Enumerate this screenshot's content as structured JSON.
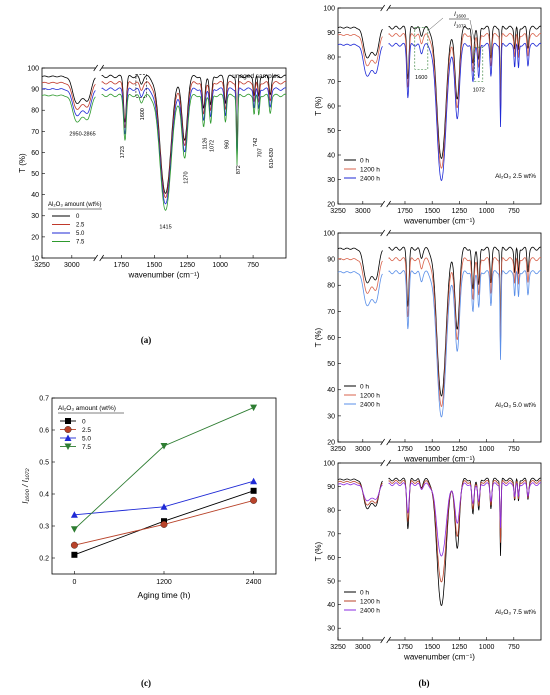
{
  "colors": {
    "black": "#000000",
    "red": "#c0392b",
    "blue": "#1f2ad6",
    "green": "#2e9a2e",
    "orange_red": "#d9634c",
    "light_blue": "#5a8fe8",
    "violet": "#8a2be2",
    "brown_red": "#b8432a",
    "dashed_box": "#2e7d32"
  },
  "panel_labels": {
    "a": "(a)",
    "b": "(b)",
    "c": "(c)"
  },
  "chart_data": [
    {
      "id": "a",
      "type": "line",
      "title": "",
      "xlabel": "wavenumber (cm⁻¹)",
      "ylabel": "T (%)",
      "xlim": [
        3250,
        500
      ],
      "ylim": [
        10,
        100
      ],
      "x_ticks": [
        "3250",
        "3000",
        "1750",
        "1500",
        "1250",
        "1000",
        "750"
      ],
      "y_ticks": [
        "10",
        "20",
        "30",
        "40",
        "50",
        "60",
        "70",
        "80",
        "90",
        "100"
      ],
      "axis_break": true,
      "corner_text": "unaged samples",
      "legend_title": "Al₂O₃ amount (wt%)",
      "legend_position": "bottom-left",
      "series": [
        {
          "name": "0",
          "color": "#000000",
          "offset": 96,
          "min": 40
        },
        {
          "name": "2.5",
          "color": "#c0392b",
          "offset": 93,
          "min": 38
        },
        {
          "name": "5.0",
          "color": "#1f2ad6",
          "offset": 90,
          "min": 35
        },
        {
          "name": "7.5",
          "color": "#2e9a2e",
          "offset": 87,
          "min": 32
        }
      ],
      "annotations": [
        {
          "text": "2950-2865",
          "x": 2910
        },
        {
          "text": "1723",
          "x": 1723
        },
        {
          "text": "1600",
          "x": 1600
        },
        {
          "text": "1415",
          "x": 1415
        },
        {
          "text": "1270",
          "x": 1270
        },
        {
          "text": "1126",
          "x": 1126
        },
        {
          "text": "1072",
          "x": 1072
        },
        {
          "text": "960",
          "x": 960
        },
        {
          "text": "872",
          "x": 872
        },
        {
          "text": "742",
          "x": 742
        },
        {
          "text": "707",
          "x": 707
        },
        {
          "text": "610-630",
          "x": 620
        }
      ]
    },
    {
      "id": "b1",
      "type": "line",
      "xlabel": "wavenumber (cm⁻¹)",
      "ylabel": "T (%)",
      "xlim": [
        3250,
        500
      ],
      "ylim": [
        20,
        100
      ],
      "x_ticks": [
        "3250",
        "3000",
        "1750",
        "1500",
        "1250",
        "1000",
        "750"
      ],
      "y_ticks": [
        "20",
        "30",
        "40",
        "50",
        "60",
        "70",
        "80",
        "90",
        "100"
      ],
      "axis_break": true,
      "sample_label": "Al₂O₃ 2.5 wt%",
      "ratio_label": {
        "numerator": "I",
        "numerator_sub": "1600",
        "denominator": "I",
        "denominator_sub": "1072"
      },
      "annotations": [
        {
          "text": "1600",
          "x": 1600
        },
        {
          "text": "1072",
          "x": 1072
        }
      ],
      "legend_position": "bottom-left",
      "series": [
        {
          "name": "0 h",
          "color": "#000000",
          "offset": 92,
          "min": 38
        },
        {
          "name": "1200 h",
          "color": "#d9634c",
          "offset": 89,
          "min": 34
        },
        {
          "name": "2400 h",
          "color": "#1f2ad6",
          "offset": 85,
          "min": 29
        }
      ]
    },
    {
      "id": "b2",
      "type": "line",
      "xlabel": "wavenumber (cm⁻¹)",
      "ylabel": "T (%)",
      "xlim": [
        3250,
        500
      ],
      "ylim": [
        20,
        100
      ],
      "x_ticks": [
        "3250",
        "3000",
        "1750",
        "1500",
        "1250",
        "1000",
        "750"
      ],
      "y_ticks": [
        "20",
        "30",
        "40",
        "50",
        "60",
        "70",
        "80",
        "90",
        "100"
      ],
      "axis_break": true,
      "sample_label": "Al₂O₃ 5.0 wt%",
      "legend_position": "bottom-left",
      "series": [
        {
          "name": "0 h",
          "color": "#000000",
          "offset": 94,
          "min": 37
        },
        {
          "name": "1200 h",
          "color": "#d9634c",
          "offset": 90,
          "min": 33
        },
        {
          "name": "2400 h",
          "color": "#5a8fe8",
          "offset": 85,
          "min": 29
        }
      ]
    },
    {
      "id": "b3",
      "type": "line",
      "xlabel": "wavenumber (cm⁻¹)",
      "ylabel": "T (%)",
      "xlim": [
        3250,
        500
      ],
      "ylim": [
        25,
        100
      ],
      "x_ticks": [
        "3250",
        "3000",
        "1750",
        "1500",
        "1250",
        "1000",
        "750"
      ],
      "y_ticks": [
        "30",
        "40",
        "50",
        "60",
        "70",
        "80",
        "90",
        "100"
      ],
      "axis_break": true,
      "sample_label": "Al₂O₃ 7.5 wt%",
      "legend_position": "bottom-left",
      "series": [
        {
          "name": "0 h",
          "color": "#000000",
          "offset": 93,
          "min": 39
        },
        {
          "name": "1200 h",
          "color": "#b8432a",
          "offset": 92,
          "min": 49
        },
        {
          "name": "2400 h",
          "color": "#8a2be2",
          "offset": 91,
          "min": 60
        }
      ]
    },
    {
      "id": "c",
      "type": "line",
      "xlabel": "Aging time (h)",
      "ylabel": "I₁₆₀₀ / I₁₀₇₂",
      "x": [
        0,
        1200,
        2400
      ],
      "x_ticks": [
        "0",
        "1200",
        "2400"
      ],
      "xlim": [
        -300,
        2700
      ],
      "ylim": [
        0.15,
        0.7
      ],
      "y_ticks": [
        "0.2",
        "0.3",
        "0.4",
        "0.5",
        "0.6",
        "0.7"
      ],
      "legend_title": "Al₂O₃ amount (wt%)",
      "legend_position": "top-left",
      "series": [
        {
          "name": "0",
          "color": "#000000",
          "marker": "square",
          "values": [
            0.21,
            0.315,
            0.41
          ]
        },
        {
          "name": "2.5",
          "color": "#b8432a",
          "marker": "circle",
          "values": [
            0.24,
            0.305,
            0.38
          ]
        },
        {
          "name": "5.0",
          "color": "#1f2ad6",
          "marker": "triangle",
          "values": [
            0.335,
            0.36,
            0.44
          ]
        },
        {
          "name": "7.5",
          "color": "#2e7d32",
          "marker": "triangle-down",
          "values": [
            0.29,
            0.55,
            0.67
          ]
        }
      ]
    }
  ]
}
